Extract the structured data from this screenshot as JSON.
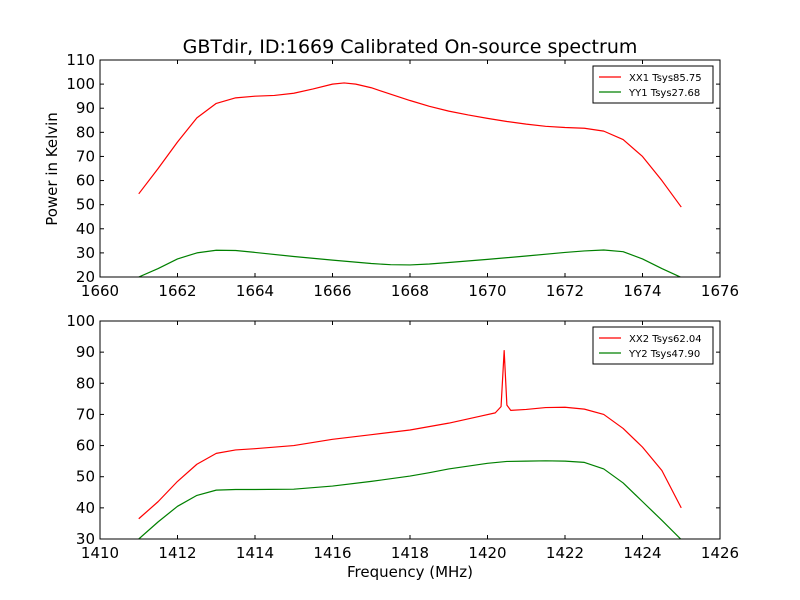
{
  "figure": {
    "title": "GBTdir, ID:1669 Calibrated On-source spectrum",
    "ylabel": "Power in Kelvin",
    "xlabel": "Frequency (MHz)"
  },
  "chart_data": [
    {
      "type": "line",
      "title": "GBTdir, ID:1669 Calibrated On-source spectrum",
      "xlabel": "",
      "ylabel": "Power in Kelvin",
      "xlim": [
        1660,
        1676
      ],
      "ylim": [
        20,
        110
      ],
      "xticks": [
        1660,
        1662,
        1664,
        1666,
        1668,
        1670,
        1672,
        1674,
        1676
      ],
      "yticks": [
        20,
        30,
        40,
        50,
        60,
        70,
        80,
        90,
        100,
        110
      ],
      "legend_position": "top-right",
      "series": [
        {
          "name": "XX1 Tsys85.75",
          "color": "#ff0000",
          "points": [
            [
              1661,
              54.5
            ],
            [
              1661.5,
              65
            ],
            [
              1662,
              76
            ],
            [
              1662.5,
              86
            ],
            [
              1663,
              92
            ],
            [
              1663.5,
              94.3
            ],
            [
              1664,
              95
            ],
            [
              1664.5,
              95.3
            ],
            [
              1665,
              96.2
            ],
            [
              1665.5,
              98
            ],
            [
              1666,
              100
            ],
            [
              1666.3,
              100.5
            ],
            [
              1666.6,
              100
            ],
            [
              1667,
              98.5
            ],
            [
              1667.5,
              95.8
            ],
            [
              1668,
              93.2
            ],
            [
              1668.5,
              90.8
            ],
            [
              1669,
              88.8
            ],
            [
              1669.5,
              87.2
            ],
            [
              1670,
              85.8
            ],
            [
              1670.5,
              84.5
            ],
            [
              1671,
              83.4
            ],
            [
              1671.5,
              82.5
            ],
            [
              1672,
              82
            ],
            [
              1672.5,
              81.7
            ],
            [
              1673,
              80.5
            ],
            [
              1673.5,
              77
            ],
            [
              1674,
              70
            ],
            [
              1674.5,
              60
            ],
            [
              1675,
              49
            ]
          ]
        },
        {
          "name": "YY1 Tsys27.68",
          "color": "#008000",
          "points": [
            [
              1661,
              20
            ],
            [
              1661.5,
              23.5
            ],
            [
              1662,
              27.5
            ],
            [
              1662.5,
              30
            ],
            [
              1663,
              31.1
            ],
            [
              1663.5,
              31
            ],
            [
              1664,
              30.2
            ],
            [
              1665,
              28.5
            ],
            [
              1666,
              27
            ],
            [
              1667,
              25.6
            ],
            [
              1667.5,
              25.1
            ],
            [
              1668,
              25
            ],
            [
              1668.5,
              25.4
            ],
            [
              1669,
              26
            ],
            [
              1670,
              27.3
            ],
            [
              1671,
              28.7
            ],
            [
              1672,
              30.2
            ],
            [
              1672.5,
              30.8
            ],
            [
              1673,
              31.2
            ],
            [
              1673.5,
              30.5
            ],
            [
              1674,
              27.5
            ],
            [
              1674.5,
              23.5
            ],
            [
              1675,
              19.8
            ]
          ]
        }
      ]
    },
    {
      "type": "line",
      "title": "",
      "xlabel": "Frequency (MHz)",
      "ylabel": "",
      "xlim": [
        1410,
        1426
      ],
      "ylim": [
        30,
        100
      ],
      "xticks": [
        1410,
        1412,
        1414,
        1416,
        1418,
        1420,
        1422,
        1424,
        1426
      ],
      "yticks": [
        30,
        40,
        50,
        60,
        70,
        80,
        90,
        100
      ],
      "legend_position": "top-right",
      "series": [
        {
          "name": "XX2 Tsys62.04",
          "color": "#ff0000",
          "points": [
            [
              1411,
              36.5
            ],
            [
              1411.5,
              42
            ],
            [
              1412,
              48.5
            ],
            [
              1412.5,
              54
            ],
            [
              1413,
              57.5
            ],
            [
              1413.5,
              58.6
            ],
            [
              1414,
              59
            ],
            [
              1415,
              60
            ],
            [
              1416,
              62
            ],
            [
              1417,
              63.5
            ],
            [
              1418,
              65
            ],
            [
              1419,
              67.2
            ],
            [
              1419.8,
              69.4
            ],
            [
              1420.2,
              70.5
            ],
            [
              1420.35,
              72.5
            ],
            [
              1420.43,
              90.5
            ],
            [
              1420.5,
              73
            ],
            [
              1420.6,
              71.3
            ],
            [
              1421,
              71.6
            ],
            [
              1421.5,
              72.2
            ],
            [
              1422,
              72.3
            ],
            [
              1422.5,
              71.7
            ],
            [
              1423,
              70
            ],
            [
              1423.5,
              65.5
            ],
            [
              1424,
              59.5
            ],
            [
              1424.5,
              52
            ],
            [
              1425,
              40
            ]
          ]
        },
        {
          "name": "YY2 Tsys47.90",
          "color": "#008000",
          "points": [
            [
              1411,
              30
            ],
            [
              1411.5,
              35.5
            ],
            [
              1412,
              40.5
            ],
            [
              1412.5,
              44
            ],
            [
              1413,
              45.7
            ],
            [
              1413.5,
              45.9
            ],
            [
              1414,
              45.9
            ],
            [
              1415,
              46
            ],
            [
              1416,
              47
            ],
            [
              1417,
              48.5
            ],
            [
              1418,
              50.2
            ],
            [
              1418.5,
              51.3
            ],
            [
              1419,
              52.5
            ],
            [
              1420,
              54.3
            ],
            [
              1420.5,
              54.9
            ],
            [
              1421,
              55
            ],
            [
              1421.5,
              55.1
            ],
            [
              1422,
              55
            ],
            [
              1422.5,
              54.6
            ],
            [
              1423,
              52.5
            ],
            [
              1423.5,
              48
            ],
            [
              1424,
              42
            ],
            [
              1424.5,
              36
            ],
            [
              1425,
              29.8
            ]
          ]
        }
      ]
    }
  ]
}
